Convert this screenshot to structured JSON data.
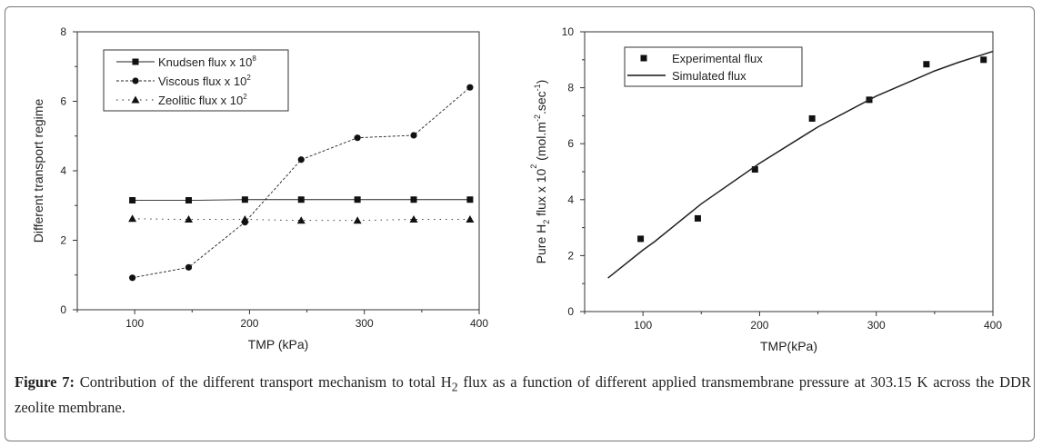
{
  "chart_data": [
    {
      "type": "line",
      "title": "",
      "xlabel": "TMP (kPa)",
      "ylabel": "Different transport regime",
      "xlim": [
        50,
        400
      ],
      "ylim": [
        0,
        8
      ],
      "xticks": [
        "100",
        "200",
        "300",
        "400"
      ],
      "yticks": [
        "0",
        "2",
        "4",
        "6",
        "8"
      ],
      "legend_position": "top-left",
      "x": [
        98,
        147,
        196,
        245,
        294,
        343,
        392
      ],
      "series": [
        {
          "name": "Knudsen flux x 10",
          "sup": "8",
          "marker": "square",
          "line": "solid",
          "values": [
            3.15,
            3.15,
            3.17,
            3.17,
            3.17,
            3.17,
            3.17
          ]
        },
        {
          "name": "Viscous flux x 10",
          "sup": "2",
          "marker": "circle",
          "line": "dashed",
          "values": [
            0.92,
            1.22,
            2.52,
            4.32,
            4.95,
            5.02,
            6.4
          ]
        },
        {
          "name": "Zeolitic flux x 10",
          "sup": "2",
          "marker": "triangle",
          "line": "dotted",
          "values": [
            2.62,
            2.6,
            2.6,
            2.57,
            2.57,
            2.6,
            2.6
          ]
        }
      ]
    },
    {
      "type": "scatter",
      "title": "",
      "xlabel": "TMP(kPa)",
      "ylabel_parts": [
        "Pure H",
        "2",
        " flux x 10",
        "2",
        " (mol.m",
        "-2",
        ".sec",
        "-1",
        ")"
      ],
      "xlim": [
        50,
        400
      ],
      "ylim": [
        0,
        10
      ],
      "xticks": [
        "100",
        "200",
        "300",
        "400"
      ],
      "yticks": [
        "0",
        "2",
        "4",
        "6",
        "8",
        "10"
      ],
      "legend_position": "top-left",
      "series": [
        {
          "name": "Experimental flux",
          "marker": "square",
          "x": [
            98,
            147,
            196,
            245,
            294,
            343,
            392
          ],
          "values": [
            2.6,
            3.33,
            5.08,
            6.9,
            7.57,
            8.84,
            9.0
          ]
        },
        {
          "name": "Simulated flux",
          "line": "solid",
          "x": [
            70,
            100,
            110,
            150,
            200,
            250,
            300,
            350,
            370,
            400
          ],
          "values": [
            1.2,
            2.2,
            2.5,
            3.85,
            5.3,
            6.6,
            7.7,
            8.6,
            8.9,
            9.3
          ]
        }
      ]
    }
  ],
  "caption": {
    "label": "Figure 7:",
    "text_before_sub": " Contribution of the different transport mechanism to total H",
    "sub": "2",
    "text_after_sub": " flux as a function of different applied transmembrane pressure at 303.15 K across the DDR zeolite membrane."
  }
}
